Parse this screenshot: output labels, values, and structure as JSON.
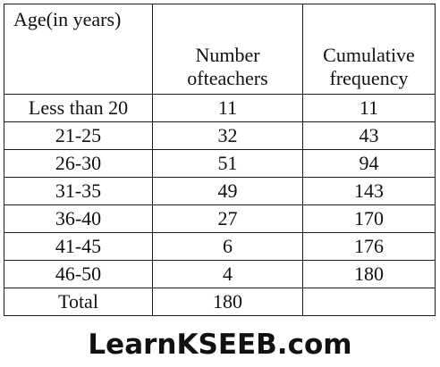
{
  "table": {
    "headers": {
      "age": "Age(in years)",
      "teachers_line1": "Number",
      "teachers_line2": "ofteachers",
      "cumulative_line1": "Cumulative",
      "cumulative_line2": "frequency"
    },
    "rows": [
      {
        "age": "Less than 20",
        "teachers": "11",
        "cumulative": "11"
      },
      {
        "age": "21-25",
        "teachers": "32",
        "cumulative": "43"
      },
      {
        "age": "26-30",
        "teachers": "51",
        "cumulative": "94"
      },
      {
        "age": "31-35",
        "teachers": "49",
        "cumulative": "143"
      },
      {
        "age": "36-40",
        "teachers": "27",
        "cumulative": "170"
      },
      {
        "age": "41-45",
        "teachers": "6",
        "cumulative": "176"
      },
      {
        "age": "46-50",
        "teachers": "4",
        "cumulative": "180"
      }
    ],
    "total": {
      "label": "Total",
      "teachers": "180",
      "cumulative": ""
    }
  },
  "watermark": {
    "text": "LearnKSEEB.com"
  }
}
